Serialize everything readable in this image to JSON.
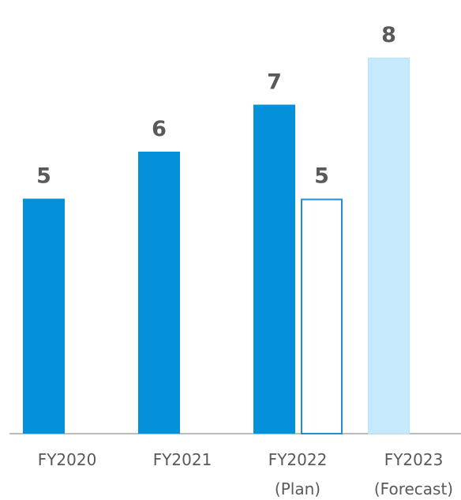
{
  "chart_data": {
    "type": "bar",
    "categories": [
      {
        "lines": [
          "FY2020"
        ]
      },
      {
        "lines": [
          "FY2021"
        ]
      },
      {
        "lines": [
          "FY2022",
          "(Plan)"
        ]
      },
      {
        "lines": [
          "FY2023",
          "(Forecast)"
        ]
      }
    ],
    "bars": [
      {
        "category_index": 0,
        "value": 5,
        "label": "5",
        "style": "solid"
      },
      {
        "category_index": 1,
        "value": 6,
        "label": "6",
        "style": "solid"
      },
      {
        "category_index": 2,
        "value": 7,
        "label": "7",
        "style": "solid"
      },
      {
        "category_index": 2,
        "value": 5,
        "label": "5",
        "style": "outline"
      },
      {
        "category_index": 3,
        "value": 8,
        "label": "8",
        "style": "light"
      }
    ],
    "ylim": [
      0,
      8
    ],
    "grid": false,
    "colors": {
      "solid": "#0491DA",
      "outline": "#1F8FD3",
      "light": "#C6EAFB",
      "light_edge": "#B7E3F8",
      "axis": "#A6A6A6",
      "text": "#595959"
    }
  }
}
